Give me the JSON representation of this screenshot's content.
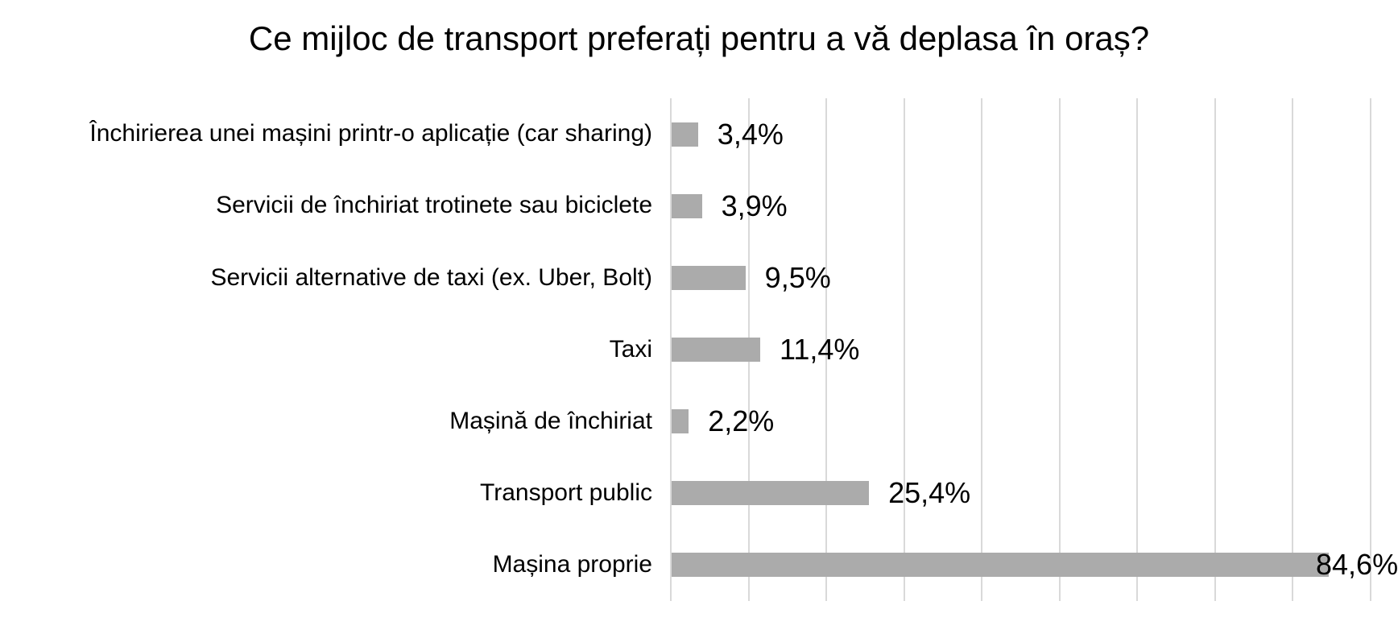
{
  "title": "Ce mijloc de transport preferați pentru a vă deplasa în oraș?",
  "chart_data": {
    "type": "bar",
    "orientation": "horizontal",
    "title": "Ce mijloc de transport preferați pentru a vă deplasa în oraș?",
    "categories": [
      "Închirierea unei mașini printr-o aplicație (car sharing)",
      "Servicii de închiriat trotinete sau biciclete",
      "Servicii alternative de taxi (ex. Uber, Bolt)",
      "Taxi",
      "Mașină de închiriat",
      "Transport public",
      "Mașina proprie"
    ],
    "values": [
      3.4,
      3.9,
      9.5,
      11.4,
      2.2,
      25.4,
      84.6
    ],
    "value_labels": [
      "3,4%",
      "3,9%",
      "9,5%",
      "11,4%",
      "2,2%",
      "25,4%",
      "84,6%"
    ],
    "xlabel": "",
    "ylabel": "",
    "xlim": [
      0,
      90
    ],
    "gridline_interval": 10,
    "grid": "vertical-only",
    "legend": "none",
    "axis_tick_labels": "none",
    "bar_color": "#ABABAB",
    "gridline_color": "#D9D9D9",
    "text_color": "#000000",
    "background_color": "#FFFFFF"
  }
}
